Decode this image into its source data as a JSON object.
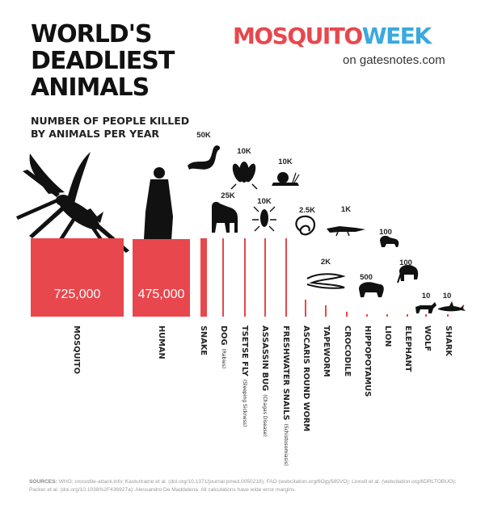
{
  "title_lines": [
    "WORLD'S",
    "DEADLIEST",
    "ANIMALS"
  ],
  "subtitle_lines": [
    "NUMBER OF PEOPLE KILLED",
    "BY ANIMALS PER YEAR"
  ],
  "brand": {
    "part1": "MOSQUITO",
    "part2": "WEEK",
    "sub": "on gatesnotes.com"
  },
  "colors": {
    "accent": "#e8474d",
    "brand_blue": "#3aa9e0",
    "text": "#111111",
    "silhouette": "#111111"
  },
  "chart_data": {
    "type": "bar",
    "title": "WORLD'S DEADLIEST ANIMALS",
    "subtitle": "NUMBER OF PEOPLE KILLED BY ANIMALS PER YEAR",
    "categories": [
      "MOSQUITO",
      "HUMAN",
      "SNAKE",
      "DOG",
      "TSETSE FLY",
      "ASSASSIN BUG",
      "FRESHWATER SNAILS",
      "ASCARIS ROUND WORM",
      "TAPEWORM",
      "CROCODILE",
      "HIPPOPOTAMUS",
      "LION",
      "ELEPHANT",
      "WOLF",
      "SHARK"
    ],
    "notes": [
      "",
      "",
      "",
      "(Rabies)",
      "(Sleeping Sickness)",
      "(Chagas Disease)",
      "(Schistosomiasis)",
      "",
      "",
      "",
      "",
      "",
      "",
      "",
      ""
    ],
    "values": [
      725000,
      475000,
      50000,
      25000,
      10000,
      10000,
      10000,
      2500,
      2000,
      1000,
      500,
      100,
      100,
      10,
      10
    ],
    "value_labels": [
      "725,000",
      "475,000",
      "50K",
      "25K",
      "10K",
      "10K",
      "10K",
      "2.5K",
      "2K",
      "1K",
      "500",
      "100",
      "100",
      "10",
      "10"
    ],
    "icons": [
      "mosquito-icon",
      "human-icon",
      "snake-icon",
      "dog-icon",
      "tsetse-fly-icon",
      "assassin-bug-icon",
      "snail-icon",
      "roundworm-icon",
      "tapeworm-icon",
      "crocodile-icon",
      "hippopotamus-icon",
      "lion-icon",
      "elephant-icon",
      "wolf-icon",
      "shark-icon"
    ],
    "grid": false,
    "legend": "none"
  },
  "sources": {
    "label": "SOURCES:",
    "text": "WHO; crocodile-attack.info; Kasturiratne et al. (doi.org/10.1371/journal.pmed.0050218); FAO (webcitation.org/6Ogy585VO); Linnell et al. (webcitation.org/6DRLTOBUO); Packer et al. (doi.org/10.1038%2F436927a); Alessandro De Maddalena.  All calculations have wide error margins."
  }
}
